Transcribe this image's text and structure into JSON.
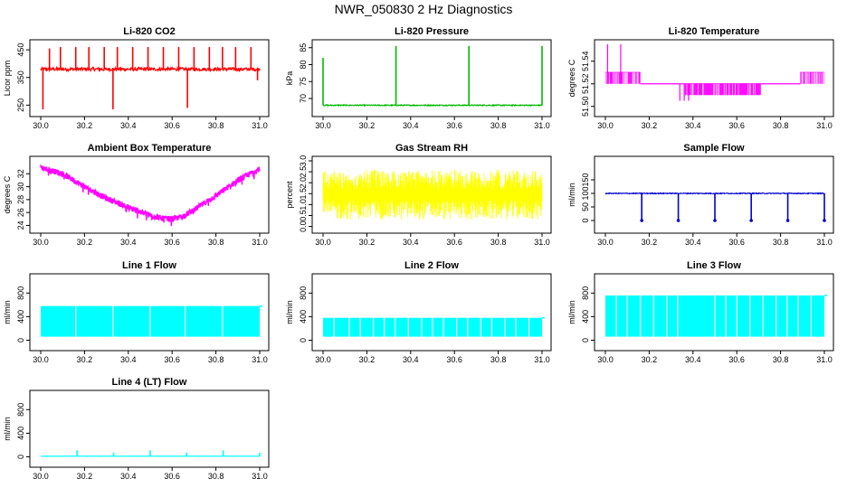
{
  "page": {
    "title": "NWR_050830  2 Hz Diagnostics"
  },
  "chart_data": [
    {
      "id": "co2",
      "type": "line",
      "title": "Li-820 CO2",
      "ylabel": "Licor ppm",
      "color": "#ff0000",
      "xlim": [
        30.0,
        31.0
      ],
      "ylim": [
        225,
        470
      ],
      "xticks": [
        30.0,
        30.2,
        30.4,
        30.6,
        30.8,
        31.0
      ],
      "xticklabels": [
        "30.0",
        "30.2",
        "30.4",
        "30.6",
        "30.8",
        "31.0"
      ],
      "yticks": [
        250,
        350,
        450
      ],
      "yticklabels": [
        "250",
        "350",
        "450"
      ],
      "baseline": 380,
      "noise": 6,
      "spikes": [
        {
          "x": 30.01,
          "y": 235
        },
        {
          "x": 30.04,
          "y": 455
        },
        {
          "x": 30.09,
          "y": 460
        },
        {
          "x": 30.16,
          "y": 460
        },
        {
          "x": 30.22,
          "y": 460
        },
        {
          "x": 30.29,
          "y": 460
        },
        {
          "x": 30.33,
          "y": 235
        },
        {
          "x": 30.35,
          "y": 460
        },
        {
          "x": 30.42,
          "y": 460
        },
        {
          "x": 30.49,
          "y": 460
        },
        {
          "x": 30.56,
          "y": 460
        },
        {
          "x": 30.63,
          "y": 460
        },
        {
          "x": 30.67,
          "y": 240
        },
        {
          "x": 30.7,
          "y": 460
        },
        {
          "x": 30.77,
          "y": 460
        },
        {
          "x": 30.83,
          "y": 460
        },
        {
          "x": 30.89,
          "y": 460
        },
        {
          "x": 30.96,
          "y": 460
        },
        {
          "x": 30.99,
          "y": 340
        }
      ]
    },
    {
      "id": "pressure",
      "type": "line",
      "title": "Li-820 Pressure",
      "ylabel": "kPa",
      "color": "#00bb00",
      "xlim": [
        30.0,
        31.0
      ],
      "ylim": [
        66,
        86
      ],
      "xticks": [
        30.0,
        30.2,
        30.4,
        30.6,
        30.8,
        31.0
      ],
      "xticklabels": [
        "30.0",
        "30.2",
        "30.4",
        "30.6",
        "30.8",
        "31.0"
      ],
      "yticks": [
        70,
        75,
        80,
        85
      ],
      "yticklabels": [
        "70",
        "75",
        "80",
        "85"
      ],
      "baseline": 68,
      "noise": 0.15,
      "spikes": [
        {
          "x": 30.0,
          "y": 82
        },
        {
          "x": 30.333,
          "y": 85.5
        },
        {
          "x": 30.666,
          "y": 85.5
        },
        {
          "x": 31.0,
          "y": 85.5
        }
      ]
    },
    {
      "id": "temperature",
      "type": "step",
      "title": "Li-820 Temperature",
      "ylabel": "degrees C",
      "color": "#ff00ff",
      "xlim": [
        30.0,
        31.0
      ],
      "ylim": [
        51.495,
        51.555
      ],
      "xticks": [
        30.0,
        30.2,
        30.4,
        30.6,
        30.8,
        31.0
      ],
      "xticklabels": [
        "30.0",
        "30.2",
        "30.4",
        "30.6",
        "30.8",
        "31.0"
      ],
      "yticks": [
        51.5,
        51.52,
        51.54
      ],
      "yticklabels": [
        "51.50",
        "51.52",
        "51.54"
      ],
      "segments": [
        {
          "x0": 30.0,
          "x1": 30.16,
          "low": 51.52,
          "high": 51.53
        },
        {
          "x0": 30.16,
          "x1": 30.36,
          "low": 51.52,
          "high": 51.52
        },
        {
          "x0": 30.36,
          "x1": 30.71,
          "low": 51.51,
          "high": 51.52
        },
        {
          "x0": 30.71,
          "x1": 30.89,
          "low": 51.52,
          "high": 51.52
        },
        {
          "x0": 30.89,
          "x1": 31.0,
          "low": 51.52,
          "high": 51.53
        }
      ],
      "spikes": [
        {
          "x": 30.01,
          "y": 51.555
        },
        {
          "x": 30.07,
          "y": 51.555
        },
        {
          "x": 30.34,
          "y": 51.505
        },
        {
          "x": 30.36,
          "y": 51.505
        },
        {
          "x": 30.38,
          "y": 51.505
        }
      ]
    },
    {
      "id": "ambient",
      "type": "band",
      "title": "Ambient Box Temperature",
      "ylabel": "degrees C",
      "color": "#ff00ff",
      "xlim": [
        30.0,
        31.0
      ],
      "ylim": [
        23.5,
        34
      ],
      "xticks": [
        30.0,
        30.2,
        30.4,
        30.6,
        30.8,
        31.0
      ],
      "xticklabels": [
        "30.0",
        "30.2",
        "30.4",
        "30.6",
        "30.8",
        "31.0"
      ],
      "yticks": [
        24,
        26,
        28,
        30,
        32
      ],
      "yticklabels": [
        "24",
        "26",
        "28",
        "30",
        "32"
      ],
      "curve": [
        {
          "x": 30.0,
          "y": 33.0
        },
        {
          "x": 30.1,
          "y": 32.0
        },
        {
          "x": 30.2,
          "y": 30.0
        },
        {
          "x": 30.3,
          "y": 28.2
        },
        {
          "x": 30.4,
          "y": 26.8
        },
        {
          "x": 30.5,
          "y": 25.6
        },
        {
          "x": 30.55,
          "y": 25.1
        },
        {
          "x": 30.6,
          "y": 25.0
        },
        {
          "x": 30.65,
          "y": 25.4
        },
        {
          "x": 30.7,
          "y": 26.4
        },
        {
          "x": 30.8,
          "y": 28.6
        },
        {
          "x": 30.9,
          "y": 31.0
        },
        {
          "x": 31.0,
          "y": 32.8
        }
      ],
      "band_width": 0.9
    },
    {
      "id": "rh",
      "type": "noise",
      "title": "Gas Stream RH",
      "ylabel": "percent",
      "color": "#ffff00",
      "xlim": [
        30.0,
        31.0
      ],
      "ylim": [
        -0.1,
        3.0
      ],
      "xticks": [
        30.0,
        30.2,
        30.4,
        30.6,
        30.8,
        31.0
      ],
      "xticklabels": [
        "30.0",
        "30.2",
        "30.4",
        "30.6",
        "30.8",
        "31.0"
      ],
      "yticks": [
        0.0,
        0.5,
        1.0,
        1.5,
        2.0,
        2.5,
        3.0
      ],
      "yticklabels": [
        "0.0",
        "0.5",
        "1.0",
        "1.5",
        "2.0",
        "2.5",
        "3.0"
      ],
      "low": 0.3,
      "high": 2.6
    },
    {
      "id": "sample",
      "type": "line",
      "title": "Sample Flow",
      "ylabel": "ml/min",
      "color": "#0000cc",
      "xlim": [
        30.0,
        31.0
      ],
      "ylim": [
        -30,
        220
      ],
      "xticks": [
        30.0,
        30.2,
        30.4,
        30.6,
        30.8,
        31.0
      ],
      "xticklabels": [
        "30.0",
        "30.2",
        "30.4",
        "30.6",
        "30.8",
        "31.0"
      ],
      "yticks": [
        0,
        50,
        100,
        150
      ],
      "yticklabels": [
        "0",
        "50",
        "100",
        "150"
      ],
      "baseline": 100,
      "noise": 1.5,
      "spikes": [
        {
          "x": 30.166,
          "y": 0
        },
        {
          "x": 30.333,
          "y": 0
        },
        {
          "x": 30.5,
          "y": 0
        },
        {
          "x": 30.666,
          "y": 0
        },
        {
          "x": 30.833,
          "y": 0
        },
        {
          "x": 31.0,
          "y": 0
        }
      ]
    },
    {
      "id": "line1",
      "type": "cycles",
      "title": "Line 1 Flow",
      "ylabel": "ml/min",
      "color": "#00ffff",
      "xlim": [
        30.0,
        31.0
      ],
      "ylim": [
        -100,
        1050
      ],
      "xticks": [
        30.0,
        30.2,
        30.4,
        30.6,
        30.8,
        31.0
      ],
      "xticklabels": [
        "30.0",
        "30.2",
        "30.4",
        "30.6",
        "30.8",
        "31.0"
      ],
      "yticks": [
        0,
        400,
        800
      ],
      "yticklabels": [
        "0",
        "400",
        "800"
      ],
      "low": 60,
      "high": 580,
      "gaps": [
        30.16,
        30.33,
        30.5,
        30.66,
        30.83
      ]
    },
    {
      "id": "line2",
      "type": "cycles",
      "title": "Line 2 Flow",
      "ylabel": "ml/min",
      "color": "#00ffff",
      "xlim": [
        30.0,
        31.0
      ],
      "ylim": [
        -100,
        1050
      ],
      "xticks": [
        30.0,
        30.2,
        30.4,
        30.6,
        30.8,
        31.0
      ],
      "xticklabels": [
        "30.0",
        "30.2",
        "30.4",
        "30.6",
        "30.8",
        "31.0"
      ],
      "yticks": [
        0,
        400,
        800
      ],
      "yticklabels": [
        "0",
        "400",
        "800"
      ],
      "low": 60,
      "high": 380,
      "gaps": [
        30.05,
        30.12,
        30.17,
        30.23,
        30.28,
        30.33,
        30.39,
        30.45,
        30.5,
        30.55,
        30.61,
        30.66,
        30.72,
        30.77,
        30.83,
        30.88,
        30.94
      ]
    },
    {
      "id": "line3",
      "type": "cycles",
      "title": "Line 3 Flow",
      "ylabel": "ml/min",
      "color": "#00ffff",
      "xlim": [
        30.0,
        31.0
      ],
      "ylim": [
        -100,
        1050
      ],
      "xticks": [
        30.0,
        30.2,
        30.4,
        30.6,
        30.8,
        31.0
      ],
      "xticklabels": [
        "30.0",
        "30.2",
        "30.4",
        "30.6",
        "30.8",
        "31.0"
      ],
      "yticks": [
        0,
        400,
        800
      ],
      "yticklabels": [
        "0",
        "400",
        "800"
      ],
      "low": 60,
      "high": 760,
      "gaps": [
        30.05,
        30.1,
        30.16,
        30.22,
        30.28,
        30.33,
        30.5,
        30.55,
        30.6,
        30.66,
        30.72,
        30.78,
        30.83,
        30.88,
        30.94
      ]
    },
    {
      "id": "line4",
      "type": "line",
      "title": "Line 4 (LT) Flow",
      "ylabel": "ml/min",
      "color": "#00ffff",
      "xlim": [
        30.0,
        31.0
      ],
      "ylim": [
        -100,
        1050
      ],
      "xticks": [
        30.0,
        30.2,
        30.4,
        30.6,
        30.8,
        31.0
      ],
      "xticklabels": [
        "30.0",
        "30.2",
        "30.4",
        "30.6",
        "30.8",
        "31.0"
      ],
      "yticks": [
        0,
        400,
        800
      ],
      "yticklabels": [
        "0",
        "400",
        "800"
      ],
      "baseline": 10,
      "noise": 2,
      "spikes": [
        {
          "x": 30.166,
          "y": 110
        },
        {
          "x": 30.333,
          "y": 70
        },
        {
          "x": 30.5,
          "y": 110
        },
        {
          "x": 30.666,
          "y": 70
        },
        {
          "x": 30.833,
          "y": 110
        },
        {
          "x": 31.0,
          "y": 70
        }
      ]
    }
  ]
}
